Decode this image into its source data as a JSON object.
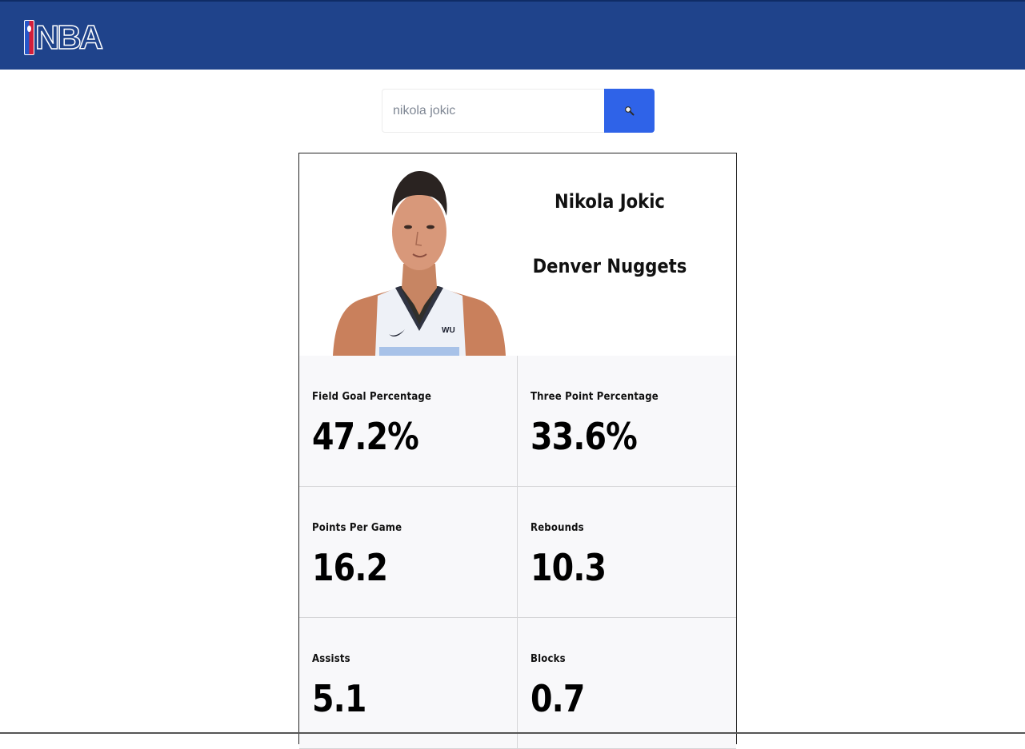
{
  "brand": {
    "logo_text": "NBA"
  },
  "search": {
    "value": "nikola jokic",
    "button_icon": "search-icon"
  },
  "player": {
    "name": "Nikola Jokic",
    "team": "Denver Nuggets"
  },
  "stats": [
    {
      "label": "Field Goal Percentage",
      "value": "47.2%"
    },
    {
      "label": "Three Point Percentage",
      "value": "33.6%"
    },
    {
      "label": "Points Per Game",
      "value": "16.2"
    },
    {
      "label": "Rebounds",
      "value": "10.3"
    },
    {
      "label": "Assists",
      "value": "5.1"
    },
    {
      "label": "Blocks",
      "value": "0.7"
    }
  ],
  "colors": {
    "navbar": "#1f438b",
    "search_button": "#2f63e8",
    "stat_background": "#f8f8fa"
  }
}
